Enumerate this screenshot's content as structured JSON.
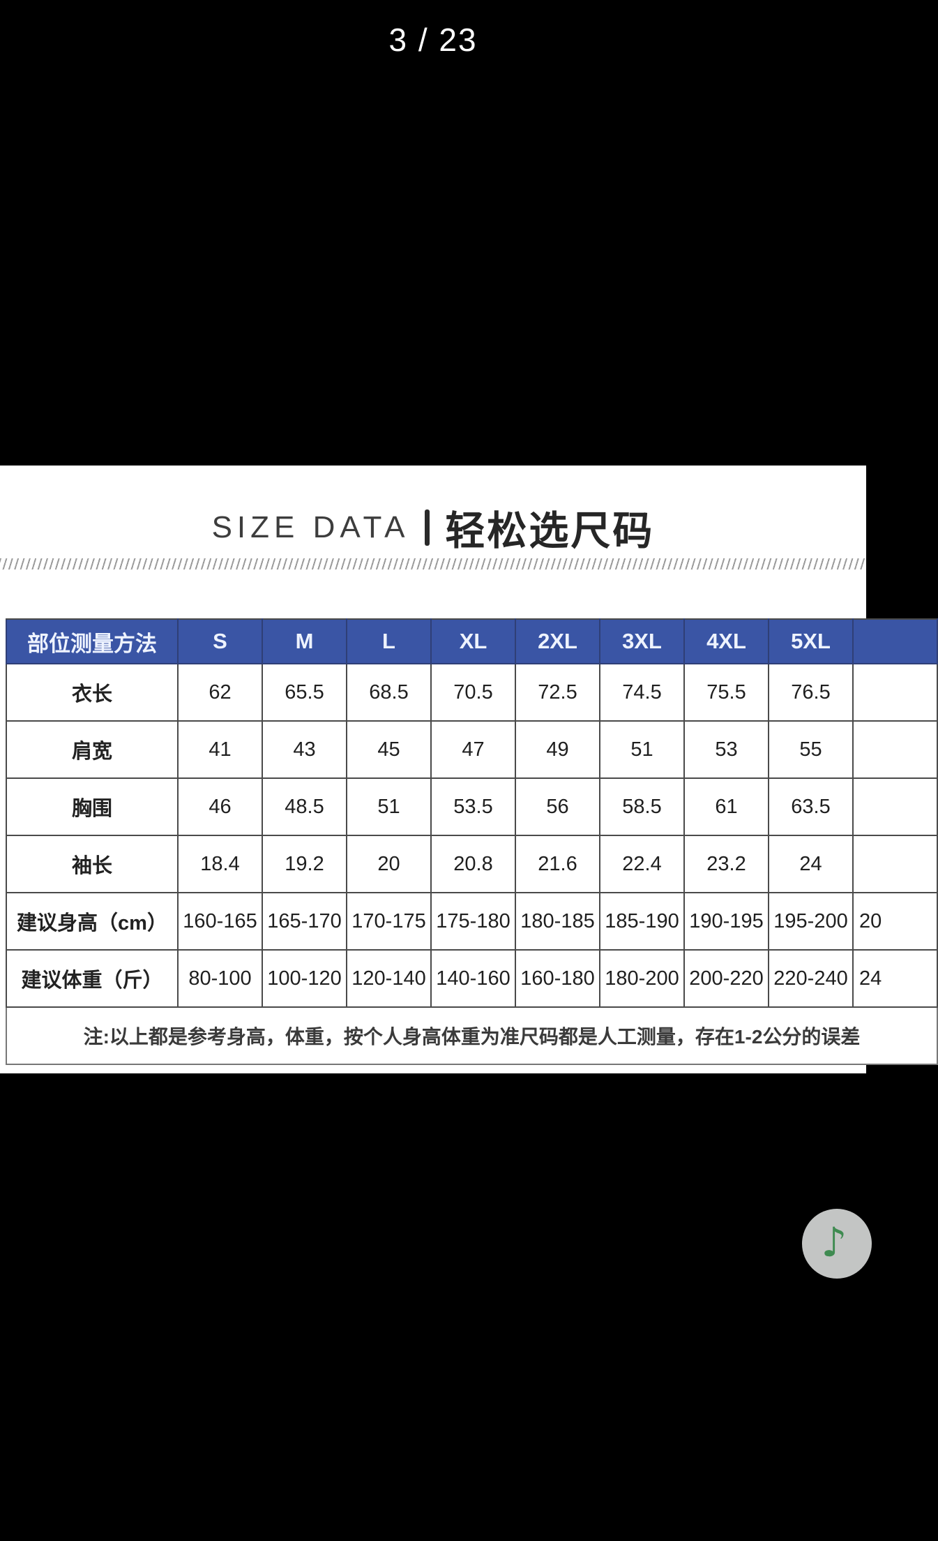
{
  "carousel": {
    "page_indicator": "3 / 23"
  },
  "size_section": {
    "title_en": "SIZE DATA",
    "title_zh": "轻松选尺码",
    "table": {
      "columns": [
        "部位测量方法",
        "S",
        "M",
        "L",
        "XL",
        "2XL",
        "3XL",
        "4XL",
        "5XL",
        ""
      ],
      "rows": [
        {
          "label": "衣长",
          "values": [
            "62",
            "65.5",
            "68.5",
            "70.5",
            "72.5",
            "74.5",
            "75.5",
            "76.5",
            ""
          ]
        },
        {
          "label": "肩宽",
          "values": [
            "41",
            "43",
            "45",
            "47",
            "49",
            "51",
            "53",
            "55",
            ""
          ]
        },
        {
          "label": "胸围",
          "values": [
            "46",
            "48.5",
            "51",
            "53.5",
            "56",
            "58.5",
            "61",
            "63.5",
            ""
          ]
        },
        {
          "label": "袖长",
          "values": [
            "18.4",
            "19.2",
            "20",
            "20.8",
            "21.6",
            "22.4",
            "23.2",
            "24",
            ""
          ]
        },
        {
          "label": "建议身高（cm）",
          "values": [
            "160-165",
            "165-170",
            "170-175",
            "175-180",
            "180-185",
            "185-190",
            "190-195",
            "195-200",
            "20"
          ]
        },
        {
          "label": "建议体重（斤）",
          "values": [
            "80-100",
            "100-120",
            "120-140",
            "140-160",
            "160-180",
            "180-200",
            "200-220",
            "220-240",
            "24"
          ]
        }
      ],
      "note": "注:以上都是参考身高，体重，按个人身高体重为准尺码都是人工测量，存在1-2公分的误差"
    }
  },
  "music_button": {
    "icon": "music-note-icon",
    "glyph": "♪"
  },
  "colors": {
    "screen_bg": "#000000",
    "panel_bg": "#FFFFFF",
    "header_blue": "#3A55A5",
    "header_text": "#EEF3FF",
    "grid_border": "#4A4A4A",
    "note_green": "#3F8B51",
    "fab_gray": "#C3C5C4"
  }
}
